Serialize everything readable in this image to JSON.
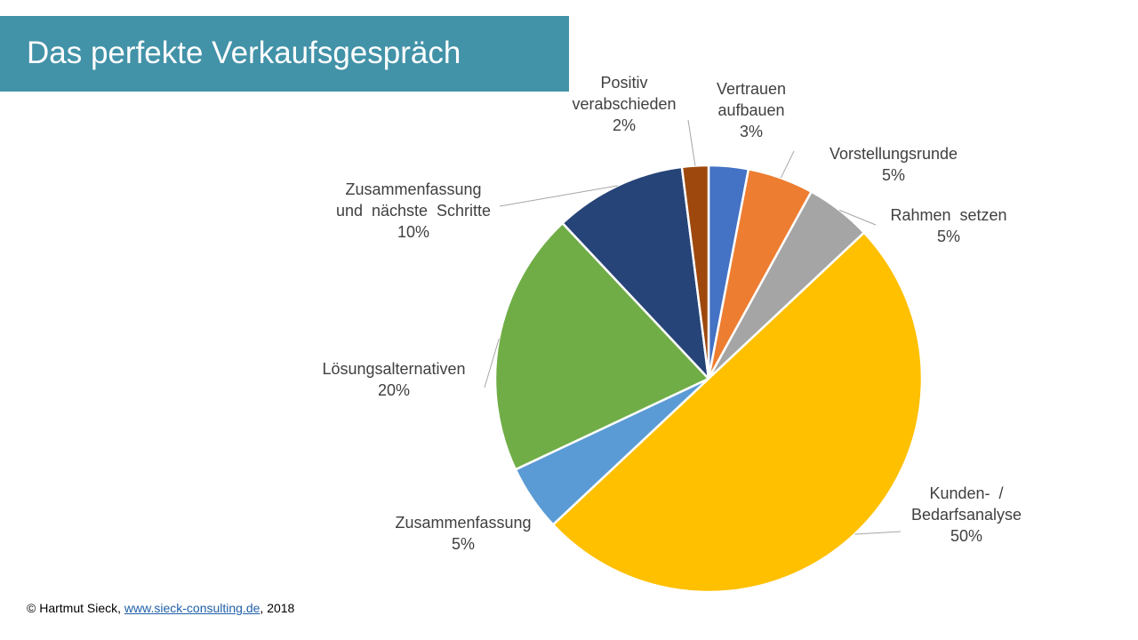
{
  "slide": {
    "title": "Das perfekte Verkaufsgespräch"
  },
  "footer": {
    "copyright": "© Hartmut  Sieck, ",
    "link_text": "www.sieck-consulting.de",
    "suffix": ",  2018"
  },
  "chart_data": {
    "type": "pie",
    "title": "",
    "start_angle_deg": 0,
    "direction": "clockwise",
    "slice_border_color": "#ffffff",
    "leader_line_color": "#a6a6a6",
    "label_color": "#404040",
    "slices": [
      {
        "label_lines": [
          "Vertrauen",
          "aufbauen"
        ],
        "value": 3,
        "value_label": "3%",
        "color": "#4472c4"
      },
      {
        "label_lines": [
          "Vorstellungsrunde"
        ],
        "value": 5,
        "value_label": "5%",
        "color": "#ed7d31"
      },
      {
        "label_lines": [
          "Rahmen  setzen"
        ],
        "value": 5,
        "value_label": "5%",
        "color": "#a5a5a5"
      },
      {
        "label_lines": [
          "Kunden-  /",
          "Bedarfsanalyse"
        ],
        "value": 50,
        "value_label": "50%",
        "color": "#ffc000"
      },
      {
        "label_lines": [
          "Zusammenfassung"
        ],
        "value": 5,
        "value_label": "5%",
        "color": "#5b9bd5"
      },
      {
        "label_lines": [
          "Lösungsalternativen"
        ],
        "value": 20,
        "value_label": "20%",
        "color": "#70ad47"
      },
      {
        "label_lines": [
          "Zusammenfassung",
          "und  nächste  Schritte"
        ],
        "value": 10,
        "value_label": "10%",
        "color": "#264478"
      },
      {
        "label_lines": [
          "Positiv",
          "verabschieden"
        ],
        "value": 2,
        "value_label": "2%",
        "color": "#9e480e"
      }
    ]
  }
}
